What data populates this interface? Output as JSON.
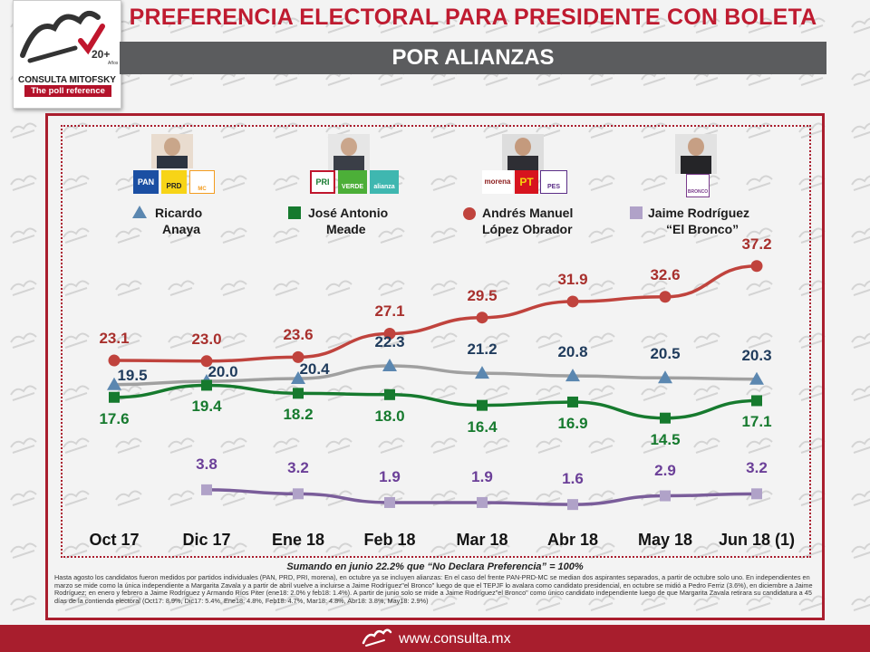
{
  "header": {
    "title_line1": "PREFERENCIA ELECTORAL PARA PRESIDENTE CON BOLETA",
    "title_line2": "POR ALIANZAS"
  },
  "logo": {
    "name": "CONSULTA MITOFSKY",
    "tagline": "The poll reference",
    "years": "20+",
    "years_caption": "Años"
  },
  "candidates": [
    {
      "name_line1": "Ricardo",
      "name_line2": "Anaya",
      "marker": "triangle-icon",
      "color": "#5b87b0",
      "parties": [
        "PAN",
        "PRD",
        "MC"
      ]
    },
    {
      "name_line1": "José Antonio",
      "name_line2": "Meade",
      "marker": "square-icon",
      "color": "#167a2e",
      "parties": [
        "PRI",
        "VERDE",
        "alianza"
      ]
    },
    {
      "name_line1": "Andrés  Manuel",
      "name_line2": "López  Obrador",
      "marker": "circle-icon",
      "color": "#c0433d",
      "parties": [
        "morena",
        "PT",
        "PES"
      ]
    },
    {
      "name_line1": "Jaime Rodríguez",
      "name_line2": "“El Bronco”",
      "marker": "square-icon",
      "color": "#b0a2c8",
      "parties": [
        "BRONCO"
      ]
    }
  ],
  "chart_data": {
    "type": "line",
    "title": "PREFERENCIA ELECTORAL PARA PRESIDENTE CON BOLETA POR ALIANZAS",
    "categories": [
      "Oct 17",
      "Dic 17",
      "Ene 18",
      "Feb 18",
      "Mar 18",
      "Abr 18",
      "May 18",
      "Jun 18 (1)"
    ],
    "series": [
      {
        "name": "Andrés Manuel López Obrador",
        "values": [
          23.1,
          23.0,
          23.6,
          27.1,
          29.5,
          31.9,
          32.6,
          37.2
        ],
        "labels": [
          "23.1",
          "23.0",
          "23.6",
          "27.1",
          "29.5",
          "31.9",
          "32.6",
          "37.2"
        ],
        "color": "#c0433d",
        "label_color": "#a8302d",
        "marker": "circle"
      },
      {
        "name": "Ricardo Anaya",
        "values": [
          19.5,
          20.0,
          20.4,
          22.3,
          21.2,
          20.8,
          20.5,
          20.3
        ],
        "labels": [
          "19.5",
          "20.0",
          "20.4",
          "22.3",
          "21.2",
          "20.8",
          "20.5",
          "20.3"
        ],
        "color": "#a0a0a0",
        "label_color": "#1f3b5c",
        "marker": "triangle"
      },
      {
        "name": "José Antonio Meade",
        "values": [
          17.6,
          19.4,
          18.2,
          18.0,
          16.4,
          16.9,
          14.5,
          17.1
        ],
        "labels": [
          "17.6",
          "19.4",
          "18.2",
          "18.0",
          "16.4",
          "16.9",
          "14.5",
          "17.1"
        ],
        "color": "#167a2e",
        "label_color": "#167a2e",
        "marker": "square"
      },
      {
        "name": "Jaime Rodríguez “El Bronco”",
        "values": [
          null,
          3.8,
          3.2,
          1.9,
          1.9,
          1.6,
          2.9,
          3.2
        ],
        "labels": [
          "",
          "3.8",
          "3.2",
          "1.9",
          "1.9",
          "1.6",
          "2.9",
          "3.2"
        ],
        "color": "#7a5d9a",
        "label_color": "#6b3f98",
        "marker": "square"
      }
    ],
    "legend": "top",
    "grid": false
  },
  "note": "Sumando  en  junio 22.2% que “No Declara Preferencia” = 100%",
  "footnote": "Hasta agosto los candidatos fueron medidos por partidos individuales (PAN, PRD, PRI, morena), en octubre ya se incluyen alianzas: En el caso del frente PAN-PRD-MC se median dos aspirantes separados, a partir de octubre solo uno. En independientes en marzo se mide como la única independiente a Margarita Zavala y a partir de abril vuelve a incluirse a Jaime Rodríguez\"el Bronco\" luego de que el TEPJF lo avalara como candidato presidencial, en octubre se midió a Pedro Ferriz (3.6%), en diciembre a Jaime Rodríguez; en enero y febrero a Jaime Rodríguez y Armando Ríos Piter (ene18: 2.0% y feb18: 1.4%).  A partir de junio solo se mide a Jaime Rodríguez\"el Bronco\" como único candidato independiente luego de que Margarita Zavala retirara su candidatura a 45 días de la contienda electoral (Oct17: 8.9%, Dic17: 5.4%, Ene18: 4.8%, Feb18: 4.7%, Mar18: 4.8%, Abr18: 3.8%, May18: 2.9%)",
  "footer": {
    "url": "www.consulta.mx"
  }
}
